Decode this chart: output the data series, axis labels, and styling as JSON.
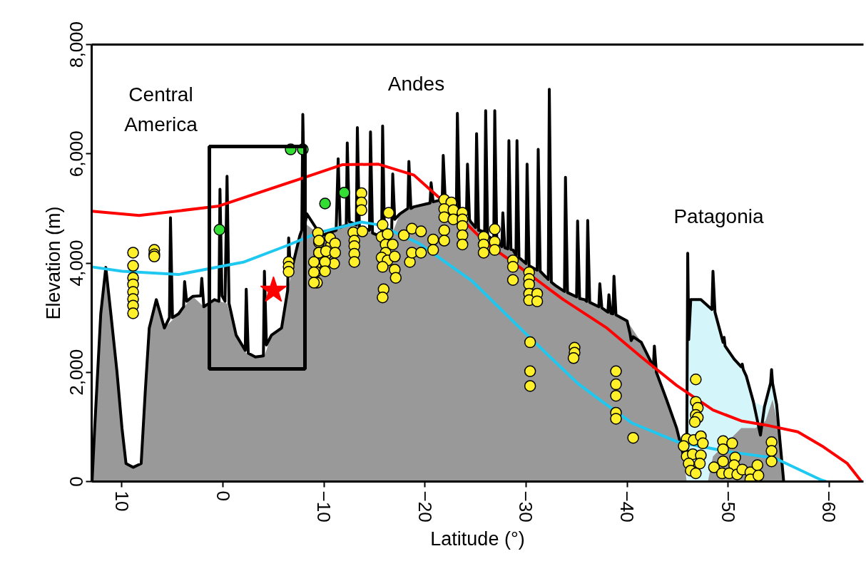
{
  "chart_data": {
    "type": "area",
    "xlabel": "Latitude (°)",
    "ylabel": "Elevation (m)",
    "xlim": [
      13,
      -63.4
    ],
    "ylim": [
      0,
      8000
    ],
    "xticks": [
      10,
      0,
      -10,
      -20,
      -30,
      -40,
      -50,
      -60
    ],
    "yticks": [
      0,
      {
        "value": 2000,
        "label": "2,000"
      },
      {
        "value": 4000,
        "label": "4,000"
      },
      {
        "value": 6000,
        "label": "6,000"
      },
      {
        "value": 8000,
        "label": "8,000"
      }
    ],
    "grid": false,
    "annotations": [
      "Central America",
      "Andes",
      "Patagonia"
    ],
    "series": [
      {
        "type": "area",
        "color": "#d4f6fb",
        "x": [
          -45.9,
          -46.1,
          -46.3,
          -47.3,
          -48.6,
          -49.6,
          -50.6,
          -51.8,
          -52.5,
          -53.6,
          -54.3,
          -54.8,
          -55.5
        ],
        "values": [
          0,
          2600,
          3330,
          3330,
          3110,
          2500,
          2240,
          1930,
          1460,
          1370,
          2020,
          1410,
          0
        ]
      },
      {
        "color": "#999999",
        "x": [
          12.96,
          12.7,
          12.1,
          11.6,
          11.1,
          10.5,
          10.0,
          9.6,
          8.9,
          8.1,
          7.7,
          7.3,
          6.6,
          5.8,
          4.4,
          3.0,
          1.9,
          0.85,
          -0.4,
          -1.3,
          -2.3,
          -3.2,
          -4.1,
          -4.8,
          -5.8,
          -6.5,
          -7.6,
          -8.3,
          -9.7,
          -11.1,
          -12.5,
          -13.9,
          -15.4,
          -16.4,
          -17.5,
          -18.9,
          -20.3,
          -21.7,
          -23.1,
          -24.5,
          -25.9,
          -27.3,
          -28.7,
          -30.1,
          -31.5,
          -32.9,
          -34.4,
          -35.8,
          -37.2,
          -38.6,
          -40.0,
          -41.4,
          -42.8,
          -43.9,
          -44.9,
          -45.6,
          -45.9,
          -48.0,
          -48.5,
          -49.9,
          -51.3,
          -52.7,
          -53.7,
          -54.4,
          -55.0,
          -55.5
        ],
        "values": [
          0,
          980,
          3070,
          3920,
          3070,
          2020,
          980,
          330,
          260,
          330,
          1630,
          2810,
          3330,
          2810,
          3070,
          3390,
          3200,
          3330,
          3260,
          2680,
          2350,
          2280,
          2300,
          2680,
          2810,
          3590,
          4500,
          4700,
          4500,
          4630,
          4760,
          4630,
          4500,
          4370,
          4900,
          5030,
          5090,
          5160,
          5030,
          4760,
          4570,
          4370,
          4240,
          3980,
          3850,
          3590,
          3460,
          3330,
          3200,
          3070,
          2940,
          2550,
          2020,
          1500,
          980,
          460,
          0,
          0,
          460,
          720,
          980,
          980,
          1110,
          1500,
          980,
          0
        ]
      },
      {
        "type": "line",
        "color": "#000000",
        "x": [
          12.96,
          12.7,
          12.1,
          11.6,
          11.1,
          10.5,
          10.0,
          9.6,
          8.9,
          8.1,
          7.7,
          7.3,
          6.6,
          5.8,
          5.3,
          5.2,
          5.0,
          4.4,
          3.9,
          3.8,
          3.6,
          3.0,
          2.2,
          2.1,
          1.9,
          0.85,
          0.4,
          0.3,
          0.1,
          -0.2,
          -0.4,
          -0.6,
          -1.3,
          -2.2,
          -2.3,
          -2.5,
          -3.2,
          -4.0,
          -4.1,
          -4.3,
          -4.8,
          -5.8,
          -6.4,
          -6.5,
          -6.7,
          -7.6,
          -7.8,
          -7.9,
          -8.1,
          -8.3,
          -9.7,
          -11.2,
          -11.4,
          -11.6,
          -12.2,
          -12.3,
          -12.5,
          -13.2,
          -13.3,
          -13.5,
          -14.5,
          -14.6,
          -14.8,
          -15.4,
          -15.7,
          -15.8,
          -16.0,
          -16.4,
          -16.7,
          -16.8,
          -17.0,
          -17.5,
          -18.3,
          -18.4,
          -18.6,
          -18.9,
          -20.3,
          -20.5,
          -20.6,
          -20.8,
          -21.7,
          -21.8,
          -22.0,
          -23.1,
          -23.2,
          -23.4,
          -24.1,
          -24.2,
          -24.4,
          -24.5,
          -25.0,
          -25.1,
          -25.3,
          -25.9,
          -26.0,
          -26.2,
          -26.8,
          -26.9,
          -27.1,
          -27.3,
          -27.6,
          -27.7,
          -27.9,
          -28.2,
          -28.3,
          -28.5,
          -28.7,
          -29.0,
          -29.1,
          -29.3,
          -30.0,
          -30.1,
          -30.3,
          -31.1,
          -31.2,
          -31.4,
          -32.2,
          -32.3,
          -32.5,
          -32.9,
          -33.8,
          -33.9,
          -34.1,
          -35.0,
          -35.1,
          -35.3,
          -35.8,
          -36.0,
          -36.1,
          -36.3,
          -37.2,
          -37.3,
          -37.5,
          -38.1,
          -38.2,
          -38.4,
          -38.6,
          -38.7,
          -38.9,
          -40.0,
          -40.3,
          -40.4,
          -40.6,
          -41.4,
          -42.6,
          -42.7,
          -42.9,
          -43.9,
          -44.9,
          -45.6,
          -45.9,
          -46.0,
          -46.1,
          -46.3,
          -47.3,
          -48.4,
          -48.5,
          -48.7,
          -49.5,
          -49.6,
          -49.7,
          -50.6,
          -51.3,
          -51.4,
          -51.5,
          -51.8,
          -52.5,
          -53.2,
          -53.6,
          -54.2,
          -54.3,
          -54.4,
          -54.8,
          -55.5
        ],
        "values": [
          0,
          980,
          3070,
          3920,
          3070,
          2020,
          980,
          330,
          260,
          330,
          1630,
          2810,
          3330,
          2810,
          3000,
          4830,
          3000,
          3070,
          3200,
          3660,
          3300,
          3390,
          3400,
          3720,
          3200,
          3330,
          3300,
          5350,
          3400,
          3300,
          5590,
          3260,
          2680,
          2400,
          3520,
          2350,
          2280,
          2300,
          3850,
          2500,
          2680,
          2810,
          3500,
          4460,
          3800,
          4500,
          4600,
          6720,
          4700,
          4900,
          4500,
          4600,
          5910,
          4650,
          4700,
          6200,
          4760,
          4700,
          6480,
          4650,
          4600,
          6400,
          4550,
          4500,
          4400,
          6510,
          4380,
          4370,
          4600,
          5630,
          4800,
          4900,
          5000,
          5860,
          5000,
          5030,
          5090,
          5100,
          5470,
          5120,
          5160,
          5970,
          5150,
          5030,
          6740,
          5000,
          4900,
          5810,
          4800,
          4760,
          4650,
          6370,
          4600,
          4570,
          6790,
          4500,
          4420,
          6790,
          4400,
          4370,
          4300,
          4920,
          4280,
          4260,
          6240,
          4250,
          4240,
          4150,
          6240,
          4100,
          3990,
          5810,
          3950,
          3870,
          6080,
          3850,
          3700,
          7180,
          3650,
          3590,
          3480,
          5570,
          3460,
          3380,
          4770,
          3350,
          3330,
          3300,
          4780,
          3280,
          3200,
          3620,
          3180,
          3100,
          3420,
          3080,
          3070,
          3760,
          3050,
          2940,
          2700,
          2580,
          2650,
          2550,
          2100,
          2480,
          2000,
          1500,
          980,
          460,
          300,
          4180,
          2600,
          3330,
          3330,
          3150,
          3850,
          3100,
          2550,
          2640,
          2480,
          2240,
          2100,
          2150,
          2050,
          1930,
          1460,
          850,
          1370,
          1800,
          2050,
          1800,
          1410,
          0
        ]
      },
      {
        "type": "line",
        "color": "#ff0000",
        "x": [
          13.0,
          8.3,
          0.5,
          -7.3,
          -11.8,
          -15.4,
          -18.9,
          -22.4,
          -26.0,
          -29.4,
          -33.7,
          -38.0,
          -41.4,
          -44.9,
          -48.5,
          -51.3,
          -54.1,
          -56.9,
          -59.3,
          -61.8,
          -63.2
        ],
        "values": [
          4950,
          4870,
          5040,
          5520,
          5800,
          5810,
          5610,
          5030,
          4370,
          3920,
          3330,
          2810,
          2280,
          1760,
          1310,
          1110,
          1020,
          910,
          650,
          330,
          0
        ]
      },
      {
        "type": "line",
        "color": "#1ec8f0",
        "x": [
          13.0,
          10.0,
          4.4,
          -2.1,
          -6.2,
          -9.5,
          -13.7,
          -15.4,
          -19.4,
          -24.6,
          -29.9,
          -35.1,
          -37.2,
          -40.5,
          -45.1,
          -49.9,
          -54.6,
          -59.2,
          -59.7
        ],
        "values": [
          3930,
          3850,
          3790,
          4020,
          4310,
          4560,
          4750,
          4700,
          4360,
          3680,
          2720,
          1800,
          1510,
          1070,
          720,
          550,
          430,
          30,
          0
        ]
      },
      {
        "type": "scatter",
        "marker": "circle",
        "color": "#fff02a",
        "x": [
          8.9,
          8.9,
          8.9,
          8.9,
          8.9,
          8.9,
          8.9,
          8.9,
          6.8,
          6.8,
          6.8,
          -6.5,
          -6.5,
          -6.5,
          -9.4,
          -9.5,
          -9.5,
          -10.2,
          -10.7,
          -11.0,
          -9.2,
          -9.2,
          -9.3,
          -9.0,
          -9.0,
          -9.0,
          -9.5,
          -9.5,
          -10.1,
          -10.1,
          -10.2,
          -10.6,
          -11.1,
          -11.1,
          -12.9,
          -13.0,
          -13.0,
          -13.0,
          -13.0,
          -13.7,
          -13.7,
          -13.7,
          -13.8,
          -15.8,
          -15.7,
          -16.3,
          -16.1,
          -16.1,
          -15.7,
          -16.3,
          -15.8,
          -16.8,
          -17.0,
          -17.0,
          -17.1,
          -15.9,
          -15.8,
          -16.4,
          -17.9,
          -18.7,
          -18.5,
          -18.7,
          -19.6,
          -19.6,
          -20.8,
          -20.8,
          -21.9,
          -22.6,
          -21.9,
          -22.8,
          -21.9,
          -22.8,
          -21.9,
          -21.9,
          -23.7,
          -23.7,
          -23.7,
          -23.7,
          -23.7,
          -25.8,
          -25.8,
          -25.8,
          -26.9,
          -26.9,
          -26.9,
          -28.7,
          -28.7,
          -28.7,
          -30.3,
          -30.3,
          -30.3,
          -30.3,
          -30.3,
          -31.1,
          -31.1,
          -30.4,
          -30.4,
          -30.4,
          -34.8,
          -34.8,
          -34.7,
          -38.9,
          -38.9,
          -38.9,
          -38.9,
          -38.9,
          -40.6,
          -46.8,
          -46.8,
          -47.0,
          -46.8,
          -47.0,
          -46.7,
          -45.9,
          -46.6,
          -47.3,
          -47.5,
          -45.6,
          -45.9,
          -46.5,
          -47.3,
          -47.2,
          -46.1,
          -46.3,
          -46.8,
          -49.5,
          -50.4,
          -49.5,
          -50.7,
          -49.5,
          -50.6,
          -48.6,
          -49.4,
          -50.1,
          -50.9,
          -51.4,
          -52.2,
          -52.9,
          -52.2,
          -53.0,
          -54.3,
          -54.3,
          -54.3
        ],
        "values": [
          4190,
          3950,
          3730,
          3610,
          3470,
          3340,
          3220,
          3080,
          4240,
          4160,
          4120,
          4020,
          3930,
          3840,
          4550,
          4380,
          4190,
          4160,
          4330,
          3990,
          3980,
          3840,
          3640,
          4020,
          3830,
          3640,
          4410,
          4190,
          4020,
          3850,
          4220,
          4460,
          4360,
          4190,
          4560,
          4410,
          4310,
          4170,
          4020,
          5280,
          5110,
          4970,
          4580,
          4700,
          4480,
          4530,
          4340,
          4190,
          4100,
          4050,
          3930,
          4340,
          4120,
          3880,
          3730,
          3520,
          3370,
          4920,
          4510,
          4630,
          4020,
          4190,
          4580,
          4190,
          4430,
          4240,
          5160,
          5110,
          4990,
          4970,
          4840,
          4800,
          4600,
          4410,
          4920,
          4800,
          4680,
          4510,
          4340,
          4480,
          4340,
          4190,
          4620,
          4390,
          4240,
          4050,
          3930,
          3690,
          3830,
          3710,
          3610,
          3440,
          3320,
          3440,
          3300,
          2550,
          2020,
          1750,
          2450,
          2360,
          2260,
          2020,
          1780,
          1570,
          1260,
          1150,
          800,
          1870,
          1460,
          1350,
          1220,
          1170,
          1090,
          780,
          760,
          830,
          700,
          650,
          460,
          500,
          480,
          330,
          330,
          200,
          150,
          740,
          700,
          590,
          440,
          370,
          300,
          260,
          150,
          150,
          130,
          220,
          170,
          300,
          40,
          110,
          720,
          560,
          370
        ]
      },
      {
        "type": "scatter",
        "marker": "circle",
        "color": "#33dd33",
        "x": [
          0.35,
          -6.7,
          -7.9,
          -10.1,
          -12.0
        ],
        "values": [
          4610,
          6080,
          6080,
          5090,
          5290
        ]
      },
      {
        "type": "scatter",
        "marker": "star",
        "color": "#ff0000",
        "x": [
          -5.0
        ],
        "values": [
          3500
        ]
      }
    ]
  }
}
